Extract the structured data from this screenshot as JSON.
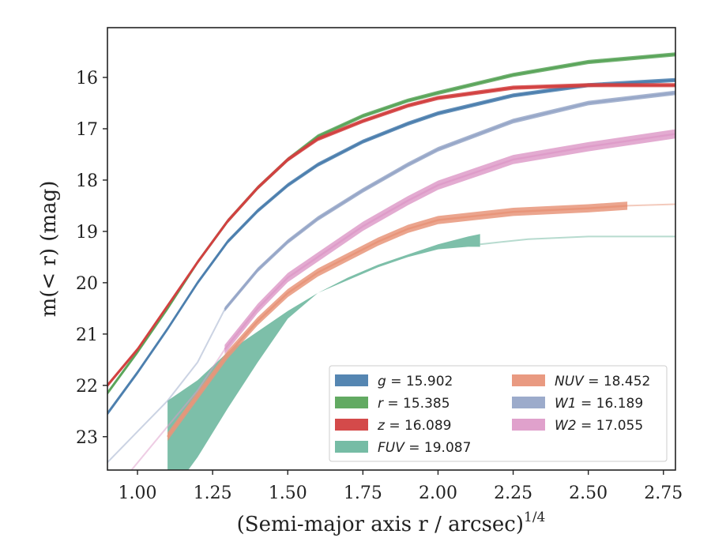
{
  "chart_data": {
    "type": "line",
    "xlabel": "(Semi-major axis r / arcsec)",
    "xlabel_sup": "1/4",
    "ylabel": "m(< r) (mag)",
    "xlim": [
      0.9,
      2.79
    ],
    "ylim": [
      23.65,
      15.03
    ],
    "y_inverted": true,
    "grid": false,
    "legend_position": "lower-right",
    "x_ticks": [
      "1.00",
      "1.25",
      "1.50",
      "1.75",
      "2.00",
      "2.25",
      "2.50",
      "2.75"
    ],
    "y_ticks": [
      "16",
      "17",
      "18",
      "19",
      "20",
      "21",
      "22",
      "23"
    ],
    "series": [
      {
        "legend": "g = 15.902",
        "color": "#4c7fae",
        "band": 0.04,
        "faint": [],
        "points": [
          [
            0.9,
            22.55
          ],
          [
            1.0,
            21.75
          ],
          [
            1.1,
            20.9
          ],
          [
            1.2,
            20.0
          ],
          [
            1.3,
            19.2
          ],
          [
            1.4,
            18.6
          ],
          [
            1.5,
            18.1
          ],
          [
            1.6,
            17.7
          ],
          [
            1.75,
            17.25
          ],
          [
            1.9,
            16.9
          ],
          [
            2.0,
            16.7
          ],
          [
            2.25,
            16.35
          ],
          [
            2.5,
            16.15
          ],
          [
            2.79,
            16.05
          ]
        ]
      },
      {
        "legend": "r = 15.385",
        "color": "#5aa55a",
        "band": 0.04,
        "faint": [],
        "points": [
          [
            0.9,
            22.15
          ],
          [
            1.0,
            21.35
          ],
          [
            1.1,
            20.5
          ],
          [
            1.2,
            19.6
          ],
          [
            1.3,
            18.8
          ],
          [
            1.4,
            18.15
          ],
          [
            1.5,
            17.6
          ],
          [
            1.6,
            17.15
          ],
          [
            1.75,
            16.75
          ],
          [
            1.9,
            16.45
          ],
          [
            2.0,
            16.3
          ],
          [
            2.25,
            15.95
          ],
          [
            2.5,
            15.7
          ],
          [
            2.79,
            15.55
          ]
        ]
      },
      {
        "legend": "z = 16.089",
        "color": "#d24040",
        "band": 0.04,
        "faint": [],
        "points": [
          [
            0.9,
            22.0
          ],
          [
            1.0,
            21.3
          ],
          [
            1.1,
            20.45
          ],
          [
            1.2,
            19.6
          ],
          [
            1.3,
            18.8
          ],
          [
            1.4,
            18.15
          ],
          [
            1.5,
            17.6
          ],
          [
            1.6,
            17.2
          ],
          [
            1.75,
            16.85
          ],
          [
            1.9,
            16.55
          ],
          [
            2.0,
            16.4
          ],
          [
            2.25,
            16.2
          ],
          [
            2.5,
            16.15
          ],
          [
            2.79,
            16.15
          ]
        ]
      },
      {
        "legend": "FUV = 19.087",
        "color": "#6fb8a0",
        "band": 0.0,
        "faint": [
          [
            2.14,
            19.25
          ],
          [
            2.3,
            19.15
          ],
          [
            2.5,
            19.1
          ],
          [
            2.79,
            19.1
          ]
        ],
        "band_upper": [
          [
            1.1,
            22.3
          ],
          [
            1.2,
            21.9
          ],
          [
            1.3,
            21.35
          ],
          [
            1.4,
            20.95
          ],
          [
            1.5,
            20.55
          ],
          [
            1.6,
            20.2
          ],
          [
            1.7,
            19.9
          ],
          [
            1.8,
            19.65
          ],
          [
            1.9,
            19.45
          ],
          [
            2.0,
            19.25
          ],
          [
            2.1,
            19.1
          ],
          [
            2.14,
            19.05
          ]
        ],
        "band_lower": [
          [
            1.1,
            24.2
          ],
          [
            1.2,
            23.4
          ],
          [
            1.3,
            22.45
          ],
          [
            1.4,
            21.55
          ],
          [
            1.5,
            20.7
          ],
          [
            1.6,
            20.2
          ],
          [
            1.7,
            19.95
          ],
          [
            1.8,
            19.7
          ],
          [
            1.9,
            19.5
          ],
          [
            2.0,
            19.35
          ],
          [
            2.1,
            19.3
          ],
          [
            2.14,
            19.3
          ]
        ]
      },
      {
        "legend": "NUV = 18.452",
        "color": "#e8957a",
        "band": 0.08,
        "faint": [
          [
            2.63,
            18.5
          ],
          [
            2.79,
            18.47
          ]
        ],
        "points": [
          [
            1.1,
            23.0
          ],
          [
            1.2,
            22.2
          ],
          [
            1.3,
            21.4
          ],
          [
            1.4,
            20.75
          ],
          [
            1.5,
            20.2
          ],
          [
            1.6,
            19.8
          ],
          [
            1.7,
            19.5
          ],
          [
            1.8,
            19.2
          ],
          [
            1.9,
            18.95
          ],
          [
            2.0,
            18.78
          ],
          [
            2.25,
            18.62
          ],
          [
            2.5,
            18.55
          ],
          [
            2.63,
            18.5
          ]
        ]
      },
      {
        "legend": "W1 = 16.189",
        "color": "#97a7c8",
        "band": 0.045,
        "faint": [
          [
            0.9,
            23.5
          ],
          [
            1.0,
            22.9
          ],
          [
            1.1,
            22.3
          ],
          [
            1.2,
            21.55
          ],
          [
            1.29,
            20.52
          ]
        ],
        "points": [
          [
            1.29,
            20.52
          ],
          [
            1.4,
            19.75
          ],
          [
            1.5,
            19.2
          ],
          [
            1.6,
            18.75
          ],
          [
            1.75,
            18.2
          ],
          [
            1.9,
            17.7
          ],
          [
            2.0,
            17.4
          ],
          [
            2.25,
            16.85
          ],
          [
            2.5,
            16.5
          ],
          [
            2.79,
            16.3
          ]
        ]
      },
      {
        "legend": "W2 = 17.055",
        "color": "#de9cc9",
        "band": 0.09,
        "faint": [
          [
            0.98,
            23.65
          ],
          [
            1.1,
            22.8
          ],
          [
            1.2,
            22.1
          ],
          [
            1.29,
            21.3
          ]
        ],
        "points": [
          [
            1.29,
            21.3
          ],
          [
            1.4,
            20.5
          ],
          [
            1.5,
            19.9
          ],
          [
            1.6,
            19.5
          ],
          [
            1.75,
            18.9
          ],
          [
            1.9,
            18.4
          ],
          [
            2.0,
            18.1
          ],
          [
            2.25,
            17.6
          ],
          [
            2.5,
            17.35
          ],
          [
            2.79,
            17.1
          ]
        ]
      }
    ]
  }
}
